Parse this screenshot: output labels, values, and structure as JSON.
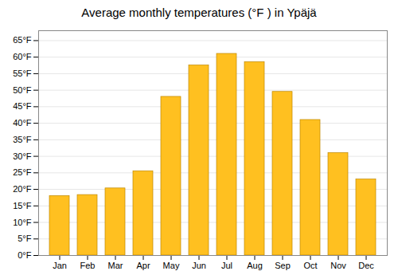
{
  "chart_data": {
    "type": "bar",
    "title": "Average monthly temperatures (°F ) in Ypäjä",
    "categories": [
      "Jan",
      "Feb",
      "Mar",
      "Apr",
      "May",
      "Jun",
      "Jul",
      "Aug",
      "Sep",
      "Oct",
      "Nov",
      "Dec"
    ],
    "values": [
      18.0,
      18.3,
      20.3,
      25.5,
      48.0,
      57.5,
      61.0,
      58.5,
      49.5,
      41.0,
      31.0,
      23.0
    ],
    "color": "#FFC020",
    "ylim": [
      0,
      68
    ],
    "yticks": [
      {
        "value": 0,
        "label": "0°F"
      },
      {
        "value": 5,
        "label": "5°F"
      },
      {
        "value": 10,
        "label": "10°F"
      },
      {
        "value": 15,
        "label": "15°F"
      },
      {
        "value": 20,
        "label": "20°F"
      },
      {
        "value": 25,
        "label": "25°F"
      },
      {
        "value": 30,
        "label": "30°F"
      },
      {
        "value": 35,
        "label": "35°F"
      },
      {
        "value": 40,
        "label": "40°F"
      },
      {
        "value": 45,
        "label": "45°F"
      },
      {
        "value": 50,
        "label": "50°F"
      },
      {
        "value": 55,
        "label": "55°F"
      },
      {
        "value": 60,
        "label": "60°F"
      },
      {
        "value": 65,
        "label": "65°F"
      }
    ],
    "grid": true
  }
}
